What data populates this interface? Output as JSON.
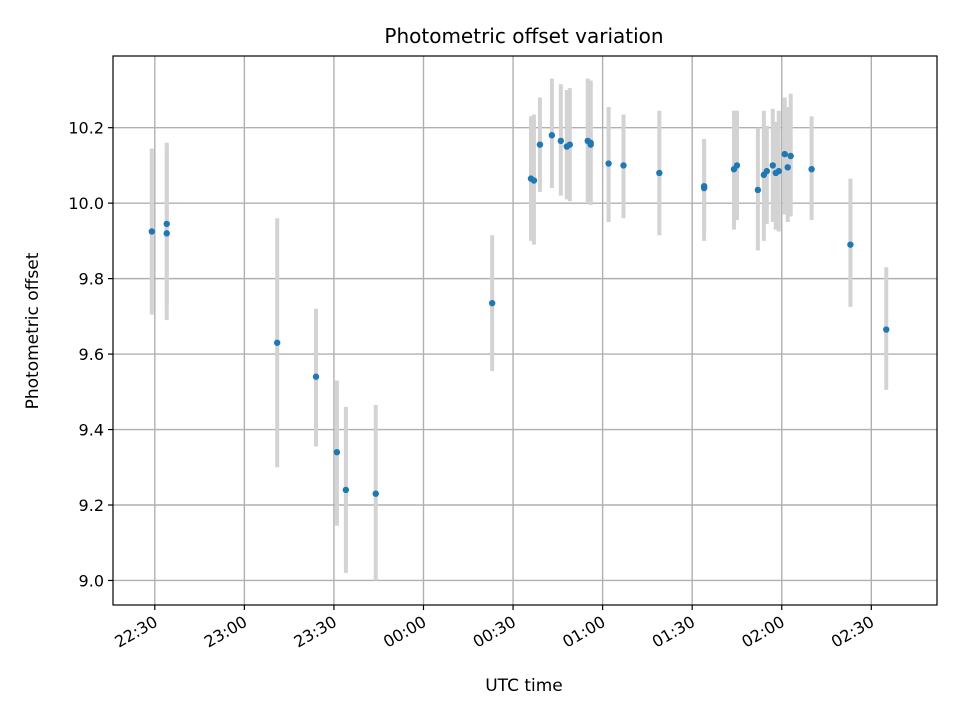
{
  "chart_data": {
    "type": "scatter",
    "title": "Photometric offset variation",
    "xlabel": "UTC time",
    "ylabel": "Photometric offset",
    "grid": true,
    "xlim": [
      "22:16",
      "02:52"
    ],
    "ylim": [
      8.935,
      10.39
    ],
    "x_ticks": [
      "22:30",
      "23:00",
      "23:30",
      "00:00",
      "00:30",
      "01:00",
      "01:30",
      "02:00",
      "02:30"
    ],
    "y_ticks": [
      "9.0",
      "9.2",
      "9.4",
      "9.6",
      "9.8",
      "10.0",
      "10.2"
    ],
    "point_color": "#1f77b4",
    "errorbar_color": "#d3d3d3",
    "points": [
      {
        "x": "22:29",
        "y": 9.925,
        "ylow": 9.705,
        "yhigh": 10.145
      },
      {
        "x": "22:34",
        "y": 9.945,
        "ylow": 9.73,
        "yhigh": 10.16
      },
      {
        "x": "22:34",
        "y": 9.92,
        "ylow": 9.69,
        "yhigh": 10.15
      },
      {
        "x": "23:11",
        "y": 9.63,
        "ylow": 9.3,
        "yhigh": 9.96
      },
      {
        "x": "23:24",
        "y": 9.54,
        "ylow": 9.355,
        "yhigh": 9.72
      },
      {
        "x": "23:31",
        "y": 9.34,
        "ylow": 9.145,
        "yhigh": 9.53
      },
      {
        "x": "23:34",
        "y": 9.24,
        "ylow": 9.02,
        "yhigh": 9.46
      },
      {
        "x": "23:44",
        "y": 9.23,
        "ylow": 9.0,
        "yhigh": 9.465
      },
      {
        "x": "00:23",
        "y": 9.735,
        "ylow": 9.555,
        "yhigh": 9.915
      },
      {
        "x": "00:36",
        "y": 10.065,
        "ylow": 9.9,
        "yhigh": 10.23
      },
      {
        "x": "00:37",
        "y": 10.06,
        "ylow": 9.89,
        "yhigh": 10.235
      },
      {
        "x": "00:39",
        "y": 10.155,
        "ylow": 10.03,
        "yhigh": 10.28
      },
      {
        "x": "00:43",
        "y": 10.18,
        "ylow": 10.04,
        "yhigh": 10.33
      },
      {
        "x": "00:46",
        "y": 10.165,
        "ylow": 10.02,
        "yhigh": 10.315
      },
      {
        "x": "00:48",
        "y": 10.15,
        "ylow": 10.01,
        "yhigh": 10.3
      },
      {
        "x": "00:49",
        "y": 10.155,
        "ylow": 10.005,
        "yhigh": 10.305
      },
      {
        "x": "00:55",
        "y": 10.165,
        "ylow": 10.0,
        "yhigh": 10.33
      },
      {
        "x": "00:56",
        "y": 10.155,
        "ylow": 9.995,
        "yhigh": 10.325
      },
      {
        "x": "00:56",
        "y": 10.16,
        "ylow": 10.0,
        "yhigh": 10.32
      },
      {
        "x": "01:02",
        "y": 10.105,
        "ylow": 9.95,
        "yhigh": 10.255
      },
      {
        "x": "01:07",
        "y": 10.1,
        "ylow": 9.96,
        "yhigh": 10.235
      },
      {
        "x": "01:19",
        "y": 10.08,
        "ylow": 9.915,
        "yhigh": 10.245
      },
      {
        "x": "01:34",
        "y": 10.045,
        "ylow": 9.9,
        "yhigh": 10.17
      },
      {
        "x": "01:34",
        "y": 10.04,
        "ylow": 9.92,
        "yhigh": 10.16
      },
      {
        "x": "01:44",
        "y": 10.09,
        "ylow": 9.93,
        "yhigh": 10.245
      },
      {
        "x": "01:45",
        "y": 10.1,
        "ylow": 9.955,
        "yhigh": 10.245
      },
      {
        "x": "01:52",
        "y": 10.035,
        "ylow": 9.875,
        "yhigh": 10.2
      },
      {
        "x": "01:54",
        "y": 10.075,
        "ylow": 9.9,
        "yhigh": 10.245
      },
      {
        "x": "01:55",
        "y": 10.085,
        "ylow": 9.945,
        "yhigh": 10.205
      },
      {
        "x": "01:57",
        "y": 10.1,
        "ylow": 9.95,
        "yhigh": 10.25
      },
      {
        "x": "01:58",
        "y": 10.08,
        "ylow": 9.93,
        "yhigh": 10.215
      },
      {
        "x": "01:59",
        "y": 10.085,
        "ylow": 9.925,
        "yhigh": 10.245
      },
      {
        "x": "02:01",
        "y": 10.13,
        "ylow": 9.97,
        "yhigh": 10.28
      },
      {
        "x": "02:02",
        "y": 10.095,
        "ylow": 9.95,
        "yhigh": 10.255
      },
      {
        "x": "02:03",
        "y": 10.125,
        "ylow": 9.965,
        "yhigh": 10.29
      },
      {
        "x": "02:10",
        "y": 10.09,
        "ylow": 9.955,
        "yhigh": 10.23
      },
      {
        "x": "02:23",
        "y": 9.89,
        "ylow": 9.725,
        "yhigh": 10.065
      },
      {
        "x": "02:35",
        "y": 9.665,
        "ylow": 9.505,
        "yhigh": 9.83
      }
    ]
  }
}
